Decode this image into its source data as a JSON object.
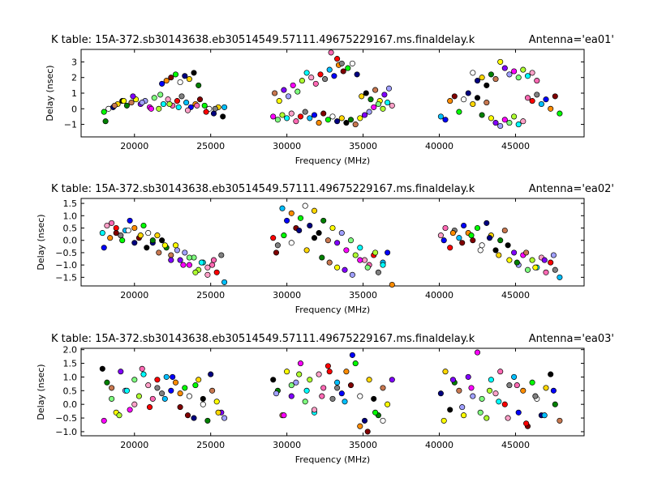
{
  "figure": {
    "background": "#ffffff",
    "marker_colors": [
      "#00ff00",
      "#0000ff",
      "#ff0000",
      "#00ffff",
      "#ff00ff",
      "#ffff00",
      "#000000",
      "#ffffff",
      "#ff8c00",
      "#808080",
      "#ffa0c8",
      "#7fff7f",
      "#8000ff",
      "#008000",
      "#000080",
      "#800000",
      "#00bfff",
      "#ff69b4",
      "#adff2f",
      "#a0a0ff",
      "#c87850",
      "#ffd700"
    ]
  },
  "chart_data": [
    {
      "type": "scatter",
      "title": "K table: 15A-372.sb30143638.eb30514549.57111.49675229167.ms.finaldelay.k",
      "antenna": "Antenna='ea01'",
      "xlabel": "Frequency (MHz)",
      "ylabel": "Delay (nsec)",
      "xlim": [
        16500,
        49500
      ],
      "ylim": [
        -1.8,
        3.8
      ],
      "xticks": [
        20000,
        25000,
        30000,
        35000,
        40000,
        45000
      ],
      "yticks": [
        -1,
        0,
        1,
        2,
        3
      ],
      "ytick_labels": [
        "−1",
        "0",
        "1",
        "2",
        "3"
      ],
      "grid": false,
      "legend": "none",
      "series": [
        {
          "x": [
            18000,
            18300,
            18600,
            18900,
            19200,
            19500,
            19800,
            20100,
            20400,
            20700,
            21000,
            21300,
            21600,
            21900,
            22200,
            22500,
            22800,
            23100,
            23400,
            23700,
            24000,
            24300,
            24600,
            24900,
            25200,
            25500,
            25800,
            18100,
            18700,
            19300,
            19900,
            20500,
            21100,
            21700,
            22300,
            22900,
            23500,
            24100,
            24700,
            25300,
            25900
          ],
          "y": [
            -0.2,
            0.0,
            0.1,
            0.3,
            0.5,
            0.2,
            0.4,
            0.6,
            0.3,
            0.5,
            0.1,
            0.7,
            0.0,
            0.3,
            0.6,
            0.2,
            0.5,
            0.8,
            0.4,
            0.1,
            0.3,
            0.6,
            0.2,
            0.0,
            -0.3,
            0.1,
            -0.5,
            -0.8,
            0.2,
            0.5,
            0.8,
            0.4,
            0.0,
            0.9,
            0.3,
            0.1,
            -0.1,
            0.2,
            -0.2,
            0.0,
            0.1
          ]
        },
        {
          "x": [
            21800,
            22100,
            22400,
            22700,
            23000,
            23300,
            23600,
            23900,
            24200
          ],
          "y": [
            1.6,
            1.8,
            2.0,
            2.2,
            1.7,
            2.1,
            1.9,
            2.3,
            1.5
          ]
        },
        {
          "x": [
            29200,
            29500,
            29800,
            30100,
            30400,
            30700,
            31000,
            31300,
            31600,
            31900,
            32200,
            32500,
            32800,
            33100,
            33400,
            33700,
            34000,
            34300,
            34600,
            34900,
            35200,
            35500,
            35800,
            36100,
            36400,
            36700
          ],
          "y": [
            1.0,
            0.5,
            1.2,
            0.8,
            1.5,
            1.1,
            1.8,
            2.3,
            2.0,
            1.6,
            2.2,
            1.9,
            2.5,
            2.1,
            2.8,
            2.4,
            2.6,
            2.9,
            2.2,
            0.8,
            1.0,
            0.6,
            1.2,
            0.5,
            0.9,
            1.3
          ]
        },
        {
          "x": [
            29100,
            29400,
            29700,
            30000,
            30300,
            30600,
            30900,
            31200,
            31500,
            31800,
            32100,
            32400,
            32700,
            33000,
            33300,
            33600,
            33900,
            34200,
            34500,
            34800,
            35100,
            35400,
            35700,
            36000,
            36300,
            36600,
            36900
          ],
          "y": [
            -0.5,
            -0.7,
            -0.4,
            -0.6,
            -0.3,
            -0.8,
            -0.5,
            -0.2,
            -0.6,
            -0.4,
            -0.9,
            -0.3,
            -0.7,
            -0.5,
            -0.8,
            -0.6,
            -0.9,
            -0.7,
            -1.0,
            -0.6,
            -0.4,
            -0.2,
            0.1,
            0.3,
            0.0,
            0.4,
            0.2
          ]
        },
        {
          "x": [
            32900,
            33300,
            33600
          ],
          "y": [
            3.6,
            3.2,
            2.9
          ]
        },
        {
          "x": [
            40100,
            40400,
            40700,
            41000,
            41300,
            41600,
            41900,
            42200,
            42500,
            42800,
            43100,
            43400,
            43700,
            44000,
            44300,
            44600,
            44900,
            45200,
            45500,
            45800,
            46100,
            46400,
            46700,
            47000,
            47300,
            47600,
            47900
          ],
          "y": [
            -0.5,
            -0.7,
            0.5,
            0.8,
            -0.2,
            0.6,
            1.0,
            0.3,
            0.7,
            -0.4,
            0.4,
            -0.6,
            -0.9,
            -1.1,
            -0.7,
            -0.9,
            -0.5,
            -1.0,
            -0.8,
            0.7,
            0.5,
            0.9,
            0.3,
            0.6,
            0.0,
            0.8,
            -0.3
          ]
        },
        {
          "x": [
            42200,
            42500,
            42800,
            43100,
            43400,
            43700,
            44000,
            44300,
            44600,
            44900,
            45200,
            45500,
            45800,
            46100,
            46400
          ],
          "y": [
            2.3,
            1.8,
            2.0,
            1.5,
            2.2,
            1.9,
            3.0,
            2.6,
            2.2,
            2.4,
            2.0,
            2.5,
            2.1,
            2.3,
            1.8
          ]
        }
      ]
    },
    {
      "type": "scatter",
      "title": "K table: 15A-372.sb30143638.eb30514549.57111.49675229167.ms.finaldelay.k",
      "antenna": "Antenna='ea02'",
      "xlabel": "Frequency (MHz)",
      "ylabel": "Delay (nsec)",
      "xlim": [
        16500,
        49500
      ],
      "ylim": [
        -1.85,
        1.7
      ],
      "xticks": [
        20000,
        25000,
        30000,
        35000,
        40000,
        45000
      ],
      "yticks": [
        -1.5,
        -1.0,
        -0.5,
        0.0,
        0.5,
        1.0,
        1.5
      ],
      "ytick_labels": [
        "−1.5",
        "−1.0",
        "−0.5",
        "0.0",
        "0.5",
        "1.0",
        "1.5"
      ],
      "grid": false,
      "legend": "none",
      "series": [
        {
          "x": [
            17900,
            18200,
            18500,
            18800,
            19100,
            19400,
            19700,
            20000,
            20300,
            20600,
            20900,
            21200,
            21500,
            21800,
            22100,
            22400,
            22700,
            23000,
            23300,
            23600,
            23900,
            24200,
            24500,
            24800,
            25100,
            25400,
            25700,
            25900
          ],
          "y": [
            0.3,
            0.6,
            0.7,
            0.5,
            0.2,
            0.4,
            0.8,
            0.5,
            0.1,
            0.6,
            0.3,
            -0.1,
            0.2,
            0.0,
            -0.3,
            -0.6,
            -0.2,
            -0.8,
            -0.5,
            -1.0,
            -0.7,
            -1.2,
            -0.9,
            -1.4,
            -1.0,
            -1.3,
            -0.6,
            -1.7
          ]
        },
        {
          "x": [
            18000,
            18400,
            18800,
            19200,
            19600,
            20000,
            20400,
            20800,
            21200,
            21600,
            22000,
            22400,
            22800,
            23200,
            23600,
            24000,
            24400,
            24800,
            25200
          ],
          "y": [
            -0.3,
            0.1,
            0.3,
            0.0,
            0.4,
            -0.1,
            0.2,
            -0.3,
            0.0,
            -0.5,
            -0.2,
            -0.8,
            -0.4,
            -1.0,
            -0.7,
            -1.3,
            -0.9,
            -1.1,
            -0.8
          ]
        },
        {
          "x": [
            29100,
            29400,
            29700,
            30000,
            30300,
            30600,
            30900,
            31200,
            31500,
            31800,
            32100,
            32400,
            32700,
            33000,
            33300,
            33600,
            33900,
            34200,
            34500,
            34800,
            35100,
            35400,
            35700,
            36000,
            36300,
            36600,
            36900
          ],
          "y": [
            0.1,
            -0.2,
            1.3,
            0.8,
            1.1,
            0.5,
            0.9,
            1.4,
            0.6,
            1.2,
            0.3,
            0.8,
            0.0,
            0.5,
            -0.1,
            0.3,
            -0.4,
            0.0,
            -0.6,
            -0.3,
            -0.8,
            -1.0,
            -0.6,
            -1.3,
            -0.9,
            -0.5,
            -1.8
          ]
        },
        {
          "x": [
            29300,
            29800,
            30300,
            30800,
            31300,
            31800,
            32300,
            32800,
            33300,
            33800,
            34300,
            34800,
            35300,
            35800,
            36300
          ],
          "y": [
            -0.5,
            0.2,
            -0.1,
            0.4,
            -0.4,
            0.1,
            -0.7,
            -0.9,
            -1.1,
            -1.2,
            -1.4,
            -0.8,
            -1.1,
            -0.5,
            -1.0
          ]
        },
        {
          "x": [
            40100,
            40400,
            40700,
            41000,
            41300,
            41600,
            41900,
            42200,
            42500,
            42800,
            43100,
            43400,
            43700,
            44000,
            44300,
            44600,
            44900,
            45200,
            45500,
            45800,
            46100,
            46400,
            46700,
            47000,
            47300,
            47600,
            47900
          ],
          "y": [
            0.2,
            0.5,
            -0.3,
            0.4,
            0.1,
            0.6,
            0.3,
            0.0,
            0.5,
            -0.2,
            0.7,
            0.2,
            -0.4,
            0.0,
            0.4,
            -0.8,
            -0.5,
            -1.0,
            -0.6,
            -1.2,
            -0.8,
            -1.1,
            -0.7,
            -1.3,
            -0.9,
            -1.2,
            -1.5
          ]
        },
        {
          "x": [
            40300,
            40900,
            41500,
            42100,
            42700,
            43300,
            43900,
            44500,
            45100,
            45700,
            46300,
            46900,
            47500
          ],
          "y": [
            0.0,
            0.3,
            -0.1,
            0.2,
            -0.4,
            0.1,
            -0.6,
            -0.2,
            -0.9,
            -0.5,
            -1.1,
            -0.8,
            -0.6
          ]
        }
      ]
    },
    {
      "type": "scatter",
      "title": "K table: 15A-372.sb30143638.eb30514549.57111.49675229167.ms.finaldelay.k",
      "antenna": "Antenna='ea03'",
      "xlabel": "Frequency (MHz)",
      "ylabel": "Delay (nsec)",
      "xlim": [
        16500,
        49500
      ],
      "ylim": [
        -1.15,
        2.05
      ],
      "xticks": [
        20000,
        25000,
        30000,
        35000,
        40000,
        45000
      ],
      "yticks": [
        -1.0,
        -0.5,
        0.0,
        0.5,
        1.0,
        1.5,
        2.0
      ],
      "ytick_labels": [
        "−1.0",
        "−0.5",
        "0.0",
        "0.5",
        "1.0",
        "1.5",
        "2.0"
      ],
      "grid": false,
      "legend": "none",
      "series": [
        {
          "x": [
            17900,
            18200,
            18500,
            18800,
            19100,
            19400,
            19700,
            20000,
            20300,
            20600,
            20900,
            21200,
            21500,
            21800,
            22100,
            22400,
            22700,
            23000,
            23300,
            23600,
            23900,
            24200,
            24500,
            24800,
            25100,
            25400,
            25700,
            25900
          ],
          "y": [
            1.3,
            0.8,
            0.6,
            -0.3,
            1.2,
            0.5,
            -0.2,
            0.9,
            0.3,
            1.1,
            0.7,
            0.2,
            0.9,
            0.4,
            1.0,
            0.5,
            0.8,
            -0.1,
            0.6,
            0.3,
            -0.5,
            0.9,
            0.2,
            -0.6,
            0.5,
            0.1,
            -0.3,
            -0.5
          ]
        },
        {
          "x": [
            18000,
            18500,
            19000,
            19500,
            20000,
            20500,
            21000,
            21500,
            22000,
            22500,
            23000,
            23500,
            24000,
            24500,
            25000,
            25500
          ],
          "y": [
            -0.6,
            0.2,
            -0.4,
            0.5,
            0.0,
            1.3,
            -0.1,
            0.6,
            0.2,
            1.0,
            0.4,
            -0.4,
            0.7,
            0.0,
            1.1,
            -0.3
          ]
        },
        {
          "x": [
            29100,
            29400,
            29700,
            30000,
            30300,
            30600,
            30900,
            31200,
            31500,
            31800,
            32100,
            32400,
            32700,
            33000,
            33300,
            33600,
            33900,
            34200,
            34500,
            34800,
            35100,
            35400,
            35700,
            36000,
            36300,
            36600,
            36900
          ],
          "y": [
            0.9,
            0.5,
            -0.4,
            1.2,
            0.3,
            0.8,
            1.5,
            0.1,
            0.9,
            -0.3,
            1.1,
            0.6,
            1.4,
            0.2,
            0.8,
            0.4,
            1.2,
            0.7,
            1.5,
            0.3,
            -0.6,
            0.9,
            0.2,
            -0.4,
            0.6,
            0.0,
            0.9
          ]
        },
        {
          "x": [
            29300,
            29800,
            30300,
            30800,
            31300,
            31800,
            32300,
            32800,
            33300,
            33800,
            34300,
            34800,
            35300,
            35800,
            36300
          ],
          "y": [
            0.4,
            -0.4,
            0.7,
            1.1,
            0.5,
            -0.2,
            0.3,
            1.2,
            0.6,
            0.1,
            1.8,
            -0.8,
            -1.0,
            -0.3,
            -0.6
          ]
        },
        {
          "x": [
            40100,
            40400,
            40700,
            41000,
            41300,
            41600,
            41900,
            42200,
            42500,
            42800,
            43100,
            43400,
            43700,
            44000,
            44300,
            44600,
            44900,
            45200,
            45500,
            45800,
            46100,
            46400,
            46700,
            47000,
            47300,
            47600,
            47900
          ],
          "y": [
            0.4,
            1.2,
            -0.2,
            0.8,
            0.5,
            -0.4,
            1.0,
            0.3,
            1.9,
            0.2,
            -0.5,
            0.9,
            0.4,
            1.2,
            0.0,
            0.7,
            1.0,
            -0.3,
            0.5,
            -0.8,
            0.8,
            0.2,
            -0.4,
            0.6,
            1.1,
            0.0,
            -0.6
          ]
        },
        {
          "x": [
            40300,
            40900,
            41500,
            42100,
            42700,
            43300,
            43900,
            44500,
            45100,
            45700,
            46300,
            46900,
            47500
          ],
          "y": [
            -0.6,
            0.9,
            -0.1,
            0.6,
            -0.3,
            0.5,
            0.1,
            -0.5,
            0.7,
            -0.7,
            0.3,
            -0.4,
            0.5
          ]
        }
      ]
    }
  ]
}
